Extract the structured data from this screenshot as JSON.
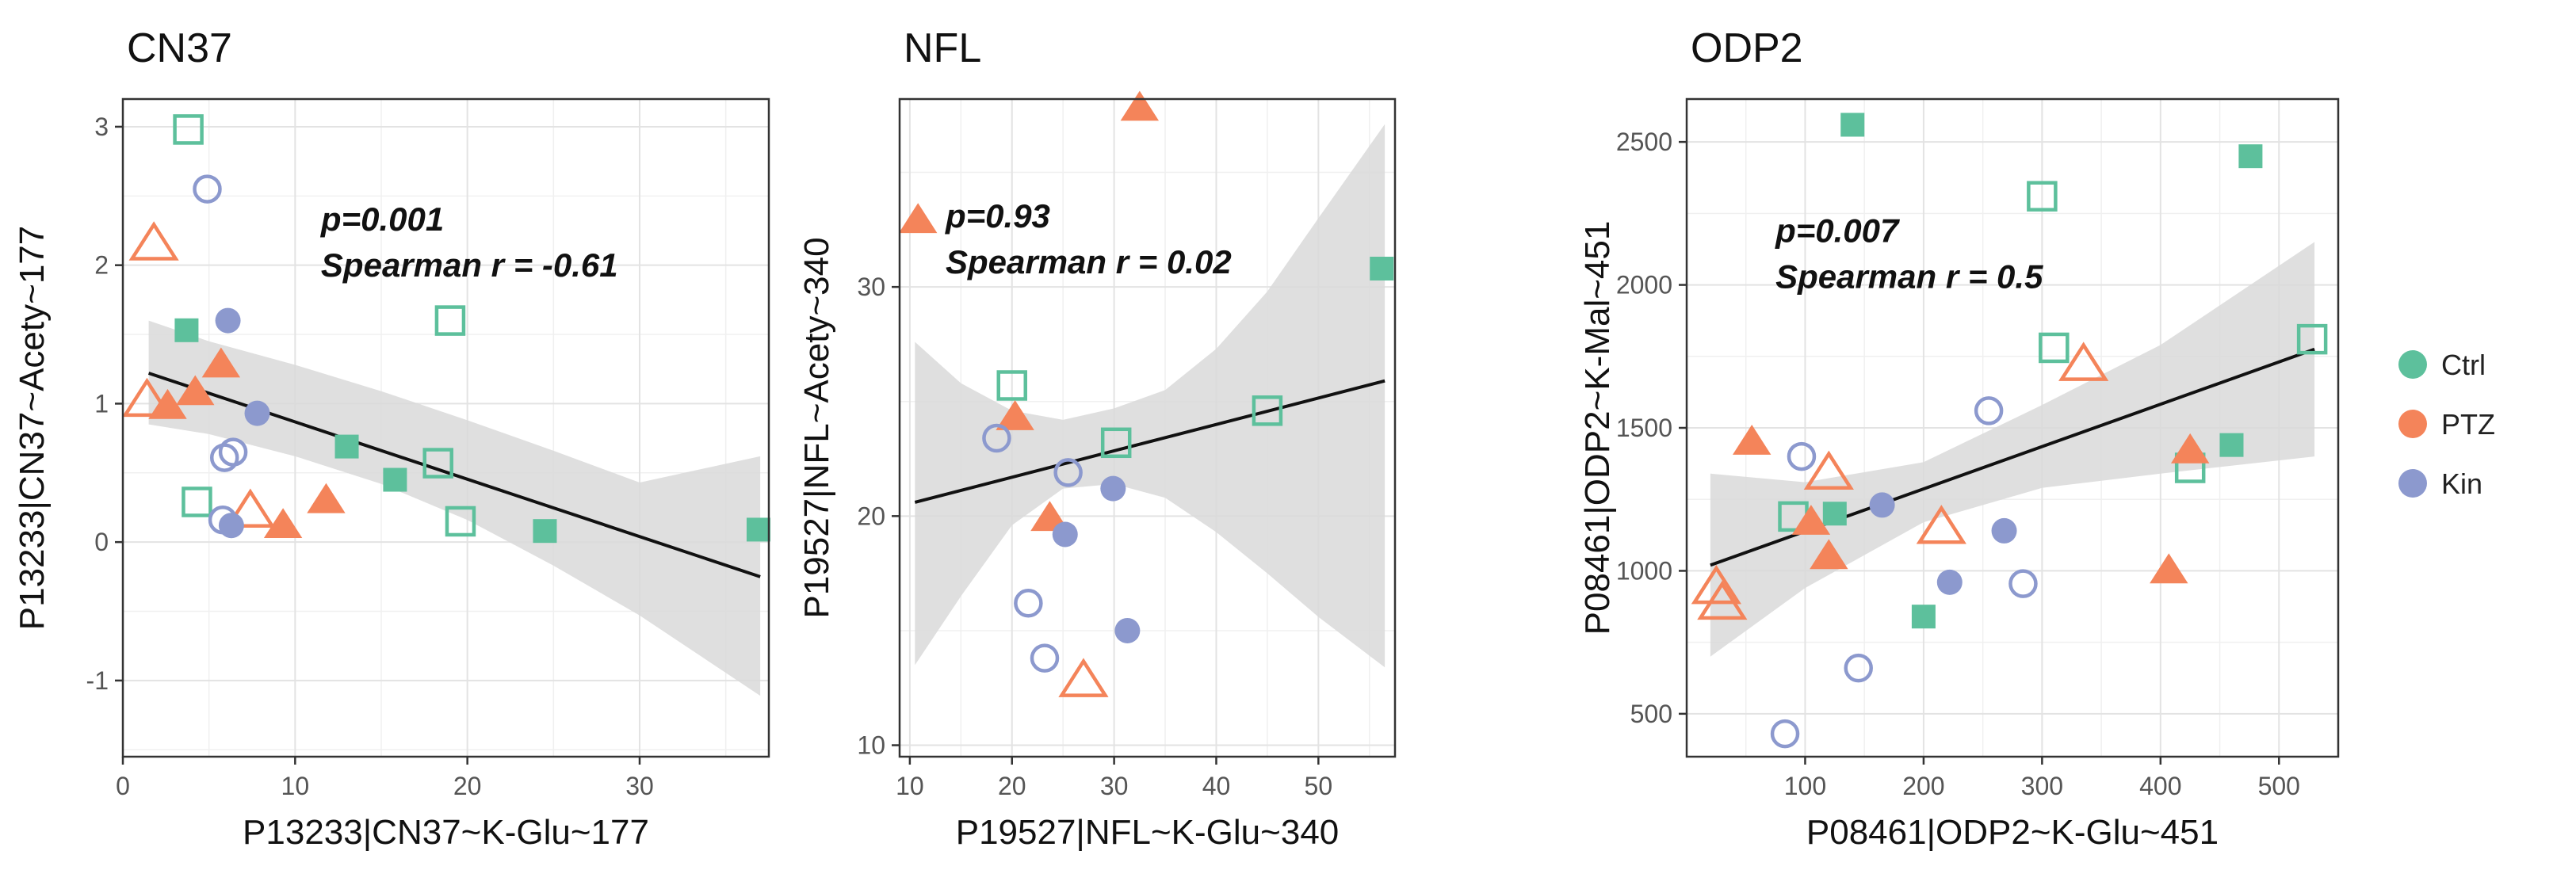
{
  "legend": {
    "entries": [
      {
        "label": "Ctrl",
        "color": "#5dc09c"
      },
      {
        "label": "PTZ",
        "color": "#f4845a"
      },
      {
        "label": "Kin",
        "color": "#8c99ce"
      }
    ]
  },
  "band_color": "#d9d9d9",
  "line_color": "#111111",
  "chart_data": [
    {
      "type": "scatter",
      "title": "CN37",
      "xlabel": "P13233|CN37~K-Glu~177",
      "ylabel": "P13233|CN37~Acety~177",
      "xlim": [
        0,
        37.5
      ],
      "ylim": [
        -1.55,
        3.2
      ],
      "xticks": [
        0,
        10,
        20,
        30
      ],
      "yticks": [
        -1,
        0,
        1,
        2,
        3
      ],
      "annotation": {
        "p": "p=0.001",
        "r": "Spearman r = -0.61",
        "at": [
          11.5,
          2.25
        ]
      },
      "fit": {
        "x": [
          1.5,
          37
        ],
        "y": [
          1.22,
          -0.25
        ]
      },
      "band": {
        "x": [
          1.5,
          5,
          10,
          15,
          20,
          25,
          30,
          37
        ],
        "lower": [
          0.85,
          0.78,
          0.62,
          0.42,
          0.16,
          -0.17,
          -0.53,
          -1.11
        ],
        "upper": [
          1.6,
          1.45,
          1.28,
          1.09,
          0.88,
          0.66,
          0.43,
          0.62
        ]
      },
      "points": [
        {
          "group": "Ctrl",
          "filled": false,
          "x": 3.8,
          "y": 2.98
        },
        {
          "group": "Ctrl",
          "filled": true,
          "x": 3.7,
          "y": 1.53
        },
        {
          "group": "Ctrl",
          "filled": false,
          "x": 4.3,
          "y": 0.29
        },
        {
          "group": "Ctrl",
          "filled": true,
          "x": 13.0,
          "y": 0.69
        },
        {
          "group": "Ctrl",
          "filled": true,
          "x": 15.8,
          "y": 0.45
        },
        {
          "group": "Ctrl",
          "filled": false,
          "x": 18.3,
          "y": 0.57
        },
        {
          "group": "Ctrl",
          "filled": false,
          "x": 19.0,
          "y": 1.6
        },
        {
          "group": "Ctrl",
          "filled": false,
          "x": 19.6,
          "y": 0.15
        },
        {
          "group": "Ctrl",
          "filled": true,
          "x": 24.5,
          "y": 0.08
        },
        {
          "group": "Ctrl",
          "filled": true,
          "x": 36.9,
          "y": 0.09
        },
        {
          "group": "PTZ",
          "filled": false,
          "x": 1.8,
          "y": 2.15
        },
        {
          "group": "PTZ",
          "filled": false,
          "x": 1.4,
          "y": 1.02
        },
        {
          "group": "PTZ",
          "filled": true,
          "x": 2.6,
          "y": 0.98
        },
        {
          "group": "PTZ",
          "filled": true,
          "x": 4.2,
          "y": 1.08
        },
        {
          "group": "PTZ",
          "filled": true,
          "x": 5.7,
          "y": 1.28
        },
        {
          "group": "PTZ",
          "filled": false,
          "x": 7.4,
          "y": 0.22
        },
        {
          "group": "PTZ",
          "filled": true,
          "x": 9.3,
          "y": 0.12
        },
        {
          "group": "PTZ",
          "filled": true,
          "x": 11.8,
          "y": 0.3
        },
        {
          "group": "Kin",
          "filled": false,
          "x": 4.9,
          "y": 2.55
        },
        {
          "group": "Kin",
          "filled": true,
          "x": 6.1,
          "y": 1.6
        },
        {
          "group": "Kin",
          "filled": true,
          "x": 7.8,
          "y": 0.93
        },
        {
          "group": "Kin",
          "filled": false,
          "x": 6.4,
          "y": 0.65
        },
        {
          "group": "Kin",
          "filled": false,
          "x": 5.9,
          "y": 0.61
        },
        {
          "group": "Kin",
          "filled": false,
          "x": 5.8,
          "y": 0.16
        },
        {
          "group": "Kin",
          "filled": true,
          "x": 6.3,
          "y": 0.12
        }
      ]
    },
    {
      "type": "scatter",
      "title": "NFL",
      "xlabel": "P19527|NFL~K-Glu~340",
      "ylabel": "P19527|NFL~Acety~340",
      "xlim": [
        9,
        57.5
      ],
      "ylim": [
        9.5,
        38.2
      ],
      "xticks": [
        10,
        20,
        30,
        40,
        50
      ],
      "yticks": [
        10,
        20,
        30
      ],
      "annotation": {
        "p": "p=0.93",
        "r": "Spearman r = 0.02",
        "at": [
          13.5,
          32.6
        ]
      },
      "fit": {
        "x": [
          10.5,
          56.5
        ],
        "y": [
          20.6,
          25.9
        ]
      },
      "band": {
        "x": [
          10.5,
          15,
          20,
          25,
          30,
          35,
          40,
          45,
          50,
          56.5
        ],
        "lower": [
          13.5,
          16.5,
          19.6,
          21.2,
          21.4,
          20.8,
          19.3,
          17.5,
          15.6,
          13.4
        ],
        "upper": [
          27.6,
          25.8,
          24.6,
          24.2,
          24.7,
          25.5,
          27.3,
          29.8,
          33.0,
          37.1
        ]
      },
      "points": [
        {
          "group": "Ctrl",
          "filled": false,
          "x": 20.0,
          "y": 25.7
        },
        {
          "group": "Ctrl",
          "filled": false,
          "x": 30.2,
          "y": 23.2
        },
        {
          "group": "Ctrl",
          "filled": false,
          "x": 45.0,
          "y": 24.6
        },
        {
          "group": "Ctrl",
          "filled": true,
          "x": 56.2,
          "y": 30.8
        },
        {
          "group": "PTZ",
          "filled": true,
          "x": 10.8,
          "y": 32.9
        },
        {
          "group": "PTZ",
          "filled": true,
          "x": 32.5,
          "y": 37.8
        },
        {
          "group": "PTZ",
          "filled": true,
          "x": 20.3,
          "y": 24.3
        },
        {
          "group": "PTZ",
          "filled": true,
          "x": 23.7,
          "y": 19.9
        },
        {
          "group": "PTZ",
          "filled": false,
          "x": 27.0,
          "y": 12.8
        },
        {
          "group": "Kin",
          "filled": false,
          "x": 18.5,
          "y": 23.4
        },
        {
          "group": "Kin",
          "filled": false,
          "x": 25.5,
          "y": 21.9
        },
        {
          "group": "Kin",
          "filled": true,
          "x": 25.2,
          "y": 19.2
        },
        {
          "group": "Kin",
          "filled": true,
          "x": 29.9,
          "y": 21.2
        },
        {
          "group": "Kin",
          "filled": false,
          "x": 21.6,
          "y": 16.2
        },
        {
          "group": "Kin",
          "filled": false,
          "x": 23.2,
          "y": 13.8
        },
        {
          "group": "Kin",
          "filled": true,
          "x": 31.3,
          "y": 15.0
        }
      ]
    },
    {
      "type": "scatter",
      "title": "ODP2",
      "xlabel": "P08461|ODP2~K-Glu~451",
      "ylabel": "P08461|ODP2~K-Mal~451",
      "xlim": [
        0,
        550
      ],
      "ylim": [
        350,
        2650
      ],
      "xticks": [
        100,
        200,
        300,
        400,
        500
      ],
      "yticks": [
        500,
        1000,
        1500,
        2000,
        2500
      ],
      "annotation": {
        "p": "p=0.007",
        "r": "Spearman r = 0.5",
        "at": [
          75,
          2150
        ]
      },
      "fit": {
        "x": [
          20,
          530
        ],
        "y": [
          1020,
          1775
        ]
      },
      "band": {
        "x": [
          20,
          100,
          200,
          300,
          400,
          530
        ],
        "lower": [
          700,
          940,
          1170,
          1290,
          1340,
          1400
        ],
        "upper": [
          1340,
          1310,
          1380,
          1580,
          1790,
          2150
        ]
      },
      "points": [
        {
          "group": "Ctrl",
          "filled": true,
          "x": 140,
          "y": 2560
        },
        {
          "group": "Ctrl",
          "filled": false,
          "x": 300,
          "y": 2310
        },
        {
          "group": "Ctrl",
          "filled": true,
          "x": 476,
          "y": 2450
        },
        {
          "group": "Ctrl",
          "filled": false,
          "x": 310,
          "y": 1780
        },
        {
          "group": "Ctrl",
          "filled": false,
          "x": 528,
          "y": 1810
        },
        {
          "group": "Ctrl",
          "filled": false,
          "x": 90,
          "y": 1190
        },
        {
          "group": "Ctrl",
          "filled": true,
          "x": 125,
          "y": 1200
        },
        {
          "group": "Ctrl",
          "filled": true,
          "x": 460,
          "y": 1440
        },
        {
          "group": "Ctrl",
          "filled": false,
          "x": 425,
          "y": 1360
        },
        {
          "group": "Ctrl",
          "filled": true,
          "x": 200,
          "y": 840
        },
        {
          "group": "PTZ",
          "filled": true,
          "x": 55,
          "y": 1450
        },
        {
          "group": "PTZ",
          "filled": false,
          "x": 120,
          "y": 1340
        },
        {
          "group": "PTZ",
          "filled": true,
          "x": 105,
          "y": 1170
        },
        {
          "group": "PTZ",
          "filled": true,
          "x": 120,
          "y": 1050
        },
        {
          "group": "PTZ",
          "filled": false,
          "x": 215,
          "y": 1150
        },
        {
          "group": "PTZ",
          "filled": false,
          "x": 335,
          "y": 1720
        },
        {
          "group": "PTZ",
          "filled": true,
          "x": 425,
          "y": 1420
        },
        {
          "group": "PTZ",
          "filled": true,
          "x": 407,
          "y": 1000
        },
        {
          "group": "PTZ",
          "filled": false,
          "x": 25,
          "y": 940
        },
        {
          "group": "PTZ",
          "filled": false,
          "x": 30,
          "y": 885
        },
        {
          "group": "Kin",
          "filled": false,
          "x": 97,
          "y": 1400
        },
        {
          "group": "Kin",
          "filled": false,
          "x": 255,
          "y": 1560
        },
        {
          "group": "Kin",
          "filled": true,
          "x": 165,
          "y": 1230
        },
        {
          "group": "Kin",
          "filled": true,
          "x": 268,
          "y": 1140
        },
        {
          "group": "Kin",
          "filled": true,
          "x": 222,
          "y": 960
        },
        {
          "group": "Kin",
          "filled": false,
          "x": 284,
          "y": 955
        },
        {
          "group": "Kin",
          "filled": false,
          "x": 145,
          "y": 660
        },
        {
          "group": "Kin",
          "filled": false,
          "x": 83,
          "y": 430
        }
      ]
    }
  ]
}
